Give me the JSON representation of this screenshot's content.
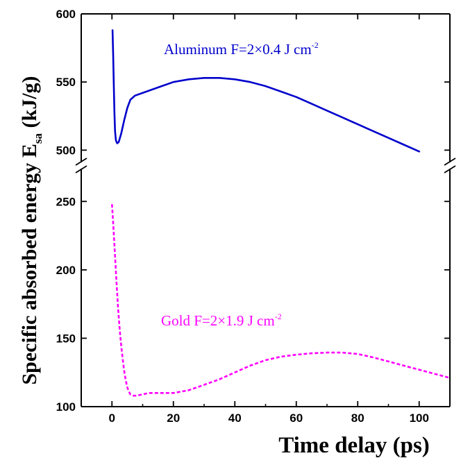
{
  "chart_data": {
    "type": "line",
    "title": "",
    "xlabel": "Time delay (ps)",
    "ylabel": {
      "main": "Specific absorbed energy  E",
      "sub": "sa",
      "unit": " (kJ/g)"
    },
    "xlim": [
      -10,
      110
    ],
    "ylim_lower": [
      100,
      275
    ],
    "ylim_upper": [
      490,
      600
    ],
    "axis_break": true,
    "grid": false,
    "x_ticks": [
      0,
      20,
      40,
      60,
      80,
      100
    ],
    "y_ticks_lower": [
      100,
      150,
      200,
      250
    ],
    "y_ticks_upper": [
      500,
      550,
      600
    ],
    "series": [
      {
        "label_main": "Aluminum  F=2×0.4 J cm",
        "label_sup": "-2",
        "color": "#0000cc",
        "style": "solid",
        "axis": "upper",
        "points": [
          [
            0.2,
            588
          ],
          [
            0.4,
            570
          ],
          [
            0.6,
            548
          ],
          [
            0.8,
            528
          ],
          [
            1.0,
            514
          ],
          [
            1.3,
            507
          ],
          [
            1.7,
            505
          ],
          [
            2.2,
            506
          ],
          [
            3,
            512
          ],
          [
            4,
            522
          ],
          [
            5,
            531
          ],
          [
            6,
            537
          ],
          [
            7.5,
            540
          ],
          [
            10,
            542
          ],
          [
            15,
            546
          ],
          [
            20,
            550
          ],
          [
            25,
            552
          ],
          [
            30,
            553
          ],
          [
            35,
            553
          ],
          [
            40,
            552
          ],
          [
            45,
            550
          ],
          [
            50,
            547
          ],
          [
            55,
            543
          ],
          [
            60,
            539
          ],
          [
            65,
            534
          ],
          [
            70,
            529
          ],
          [
            75,
            524
          ],
          [
            80,
            519
          ],
          [
            85,
            514
          ],
          [
            90,
            509
          ],
          [
            95,
            504
          ],
          [
            100,
            499
          ]
        ]
      },
      {
        "label_main": "Gold  F=2×1.9 J cm",
        "label_sup": "-2",
        "color": "#ff00ff",
        "style": "dashed",
        "axis": "lower",
        "points": [
          [
            0,
            248
          ],
          [
            0.5,
            230
          ],
          [
            1,
            210
          ],
          [
            1.5,
            190
          ],
          [
            2,
            172
          ],
          [
            2.5,
            157
          ],
          [
            3,
            145
          ],
          [
            3.5,
            135
          ],
          [
            4,
            126
          ],
          [
            4.5,
            119
          ],
          [
            5,
            114
          ],
          [
            5.5,
            111
          ],
          [
            6,
            109
          ],
          [
            7,
            108
          ],
          [
            8,
            108
          ],
          [
            10,
            109
          ],
          [
            12,
            110
          ],
          [
            15,
            110
          ],
          [
            20,
            110
          ],
          [
            25,
            112
          ],
          [
            30,
            116
          ],
          [
            35,
            120
          ],
          [
            40,
            125
          ],
          [
            45,
            130
          ],
          [
            50,
            134
          ],
          [
            55,
            136.5
          ],
          [
            60,
            138
          ],
          [
            65,
            139
          ],
          [
            70,
            139.5
          ],
          [
            75,
            139.5
          ],
          [
            80,
            138.5
          ],
          [
            85,
            136
          ],
          [
            90,
            133
          ],
          [
            95,
            130
          ],
          [
            100,
            127
          ],
          [
            105,
            124
          ],
          [
            110,
            121
          ]
        ]
      }
    ]
  }
}
